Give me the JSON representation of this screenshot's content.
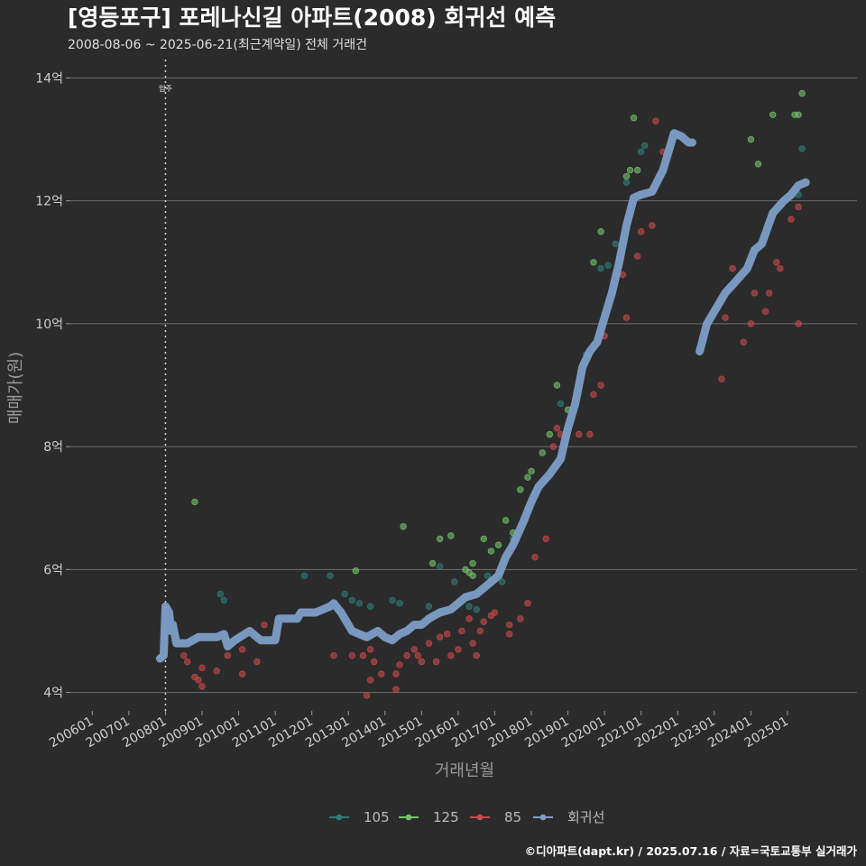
{
  "header": {
    "title": "[영등포구] 포레나신길 아파트(2008) 회귀선 예측",
    "subtitle": "2008-08-06 ~ 2025-06-21(최근계약일) 전체 거래건"
  },
  "caption": "©디아파트(dapt.kr) / 2025.07.16 / 자료=국토교통부 실거래가",
  "chart_data": {
    "type": "scatter",
    "title": "[영등포구] 포레나신길 아파트(2008) 회귀선 예측",
    "xlabel": "거래년월",
    "ylabel": "매매가(원)",
    "x_range": [
      2005.4,
      2026.9
    ],
    "ylim": [
      3.7,
      14.3
    ],
    "y_ticks": [
      4,
      6,
      8,
      10,
      12,
      14
    ],
    "y_tick_labels": [
      "4억",
      "6억",
      "8억",
      "10억",
      "12억",
      "14억"
    ],
    "x_ticks": [
      2006,
      2007,
      2008,
      2009,
      2010,
      2011,
      2012,
      2013,
      2014,
      2015,
      2016,
      2017,
      2018,
      2019,
      2020,
      2021,
      2022,
      2023,
      2024,
      2025
    ],
    "x_tick_labels": [
      "200601",
      "200701",
      "200801",
      "200901",
      "201001",
      "201101",
      "201201",
      "201301",
      "201401",
      "201501",
      "201601",
      "201701",
      "201801",
      "201901",
      "202001",
      "202101",
      "202201",
      "202301",
      "202401",
      "202501"
    ],
    "annotation": {
      "x": 2008.0,
      "label": "입주"
    },
    "grid": true,
    "legend_position": "bottom",
    "legend": [
      "105",
      "125",
      "85",
      "회귀선"
    ],
    "series": [
      {
        "name": "105",
        "color": "#2e7d78",
        "points": [
          [
            2009.5,
            5.6
          ],
          [
            2009.6,
            5.5
          ],
          [
            2011.8,
            5.9
          ],
          [
            2012.5,
            5.9
          ],
          [
            2012.9,
            5.6
          ],
          [
            2013.1,
            5.5
          ],
          [
            2013.3,
            5.45
          ],
          [
            2013.6,
            5.4
          ],
          [
            2014.2,
            5.5
          ],
          [
            2014.4,
            5.45
          ],
          [
            2015.2,
            5.4
          ],
          [
            2015.5,
            6.05
          ],
          [
            2015.9,
            5.8
          ],
          [
            2016.3,
            5.4
          ],
          [
            2016.5,
            5.35
          ],
          [
            2016.8,
            5.9
          ],
          [
            2017.2,
            5.8
          ],
          [
            2017.5,
            6.5
          ],
          [
            2017.9,
            7.0
          ],
          [
            2018.8,
            8.7
          ],
          [
            2019.5,
            9.5
          ],
          [
            2019.9,
            10.9
          ],
          [
            2020.1,
            10.95
          ],
          [
            2020.3,
            11.3
          ],
          [
            2020.6,
            12.3
          ],
          [
            2021.0,
            12.8
          ],
          [
            2021.1,
            12.9
          ],
          [
            2025.4,
            12.85
          ],
          [
            2025.3,
            12.1
          ]
        ]
      },
      {
        "name": "125",
        "color": "#73c26a",
        "points": [
          [
            2008.8,
            7.1
          ],
          [
            2013.2,
            5.98
          ],
          [
            2014.5,
            6.7
          ],
          [
            2015.3,
            6.1
          ],
          [
            2015.5,
            6.5
          ],
          [
            2015.8,
            6.55
          ],
          [
            2016.2,
            6.0
          ],
          [
            2016.3,
            5.95
          ],
          [
            2016.4,
            5.9
          ],
          [
            2016.4,
            6.1
          ],
          [
            2016.7,
            6.5
          ],
          [
            2016.9,
            6.3
          ],
          [
            2017.1,
            6.4
          ],
          [
            2017.3,
            6.8
          ],
          [
            2017.5,
            6.6
          ],
          [
            2017.7,
            7.3
          ],
          [
            2017.9,
            7.5
          ],
          [
            2018.0,
            7.6
          ],
          [
            2018.3,
            7.9
          ],
          [
            2018.5,
            8.2
          ],
          [
            2018.7,
            9.0
          ],
          [
            2019.0,
            8.6
          ],
          [
            2019.7,
            11.0
          ],
          [
            2019.9,
            11.5
          ],
          [
            2020.6,
            12.4
          ],
          [
            2020.7,
            12.5
          ],
          [
            2020.8,
            13.35
          ],
          [
            2020.9,
            12.5
          ],
          [
            2024.0,
            13.0
          ],
          [
            2024.2,
            12.6
          ],
          [
            2024.6,
            13.4
          ],
          [
            2025.2,
            13.4
          ],
          [
            2025.3,
            13.4
          ],
          [
            2025.4,
            13.75
          ]
        ]
      },
      {
        "name": "85",
        "color": "#c9494a",
        "points": [
          [
            2008.5,
            4.6
          ],
          [
            2008.6,
            4.5
          ],
          [
            2008.8,
            4.25
          ],
          [
            2008.9,
            4.2
          ],
          [
            2009.0,
            4.4
          ],
          [
            2009.0,
            4.1
          ],
          [
            2009.4,
            4.35
          ],
          [
            2009.7,
            4.6
          ],
          [
            2010.1,
            4.7
          ],
          [
            2010.1,
            4.3
          ],
          [
            2010.5,
            4.5
          ],
          [
            2010.7,
            5.1
          ],
          [
            2012.6,
            4.6
          ],
          [
            2013.1,
            4.6
          ],
          [
            2013.4,
            4.6
          ],
          [
            2013.6,
            4.7
          ],
          [
            2013.7,
            4.5
          ],
          [
            2013.5,
            3.95
          ],
          [
            2013.6,
            4.2
          ],
          [
            2013.9,
            4.3
          ],
          [
            2014.3,
            4.3
          ],
          [
            2014.3,
            4.05
          ],
          [
            2014.4,
            4.45
          ],
          [
            2014.6,
            4.6
          ],
          [
            2014.8,
            4.7
          ],
          [
            2014.9,
            4.6
          ],
          [
            2015.0,
            4.5
          ],
          [
            2015.2,
            4.8
          ],
          [
            2015.4,
            4.5
          ],
          [
            2015.5,
            4.9
          ],
          [
            2015.7,
            4.95
          ],
          [
            2015.8,
            4.6
          ],
          [
            2016.0,
            4.7
          ],
          [
            2016.1,
            5.0
          ],
          [
            2016.3,
            5.2
          ],
          [
            2016.4,
            4.8
          ],
          [
            2016.5,
            4.6
          ],
          [
            2016.6,
            5.0
          ],
          [
            2016.7,
            5.15
          ],
          [
            2016.9,
            5.25
          ],
          [
            2017.0,
            5.3
          ],
          [
            2017.4,
            5.1
          ],
          [
            2017.4,
            4.95
          ],
          [
            2017.7,
            5.2
          ],
          [
            2017.9,
            5.45
          ],
          [
            2018.1,
            6.2
          ],
          [
            2018.4,
            6.5
          ],
          [
            2018.6,
            8.0
          ],
          [
            2018.7,
            8.3
          ],
          [
            2018.8,
            8.2
          ],
          [
            2019.3,
            8.2
          ],
          [
            2019.6,
            8.2
          ],
          [
            2019.7,
            8.85
          ],
          [
            2019.9,
            9.0
          ],
          [
            2020.0,
            9.8
          ],
          [
            2020.5,
            10.8
          ],
          [
            2020.6,
            10.1
          ],
          [
            2020.9,
            11.1
          ],
          [
            2021.0,
            11.5
          ],
          [
            2021.3,
            11.6
          ],
          [
            2021.4,
            13.3
          ],
          [
            2021.6,
            12.8
          ],
          [
            2023.2,
            9.1
          ],
          [
            2023.3,
            10.1
          ],
          [
            2023.5,
            10.9
          ],
          [
            2023.8,
            9.7
          ],
          [
            2024.0,
            10.0
          ],
          [
            2024.1,
            10.5
          ],
          [
            2024.4,
            10.2
          ],
          [
            2024.5,
            10.5
          ],
          [
            2024.7,
            11.0
          ],
          [
            2024.8,
            10.9
          ],
          [
            2025.1,
            11.7
          ],
          [
            2025.3,
            11.9
          ],
          [
            2025.3,
            10.0
          ]
        ]
      }
    ],
    "regression": {
      "name": "회귀선",
      "color": "#7d9ec7",
      "segments": [
        [
          [
            2007.85,
            4.55
          ],
          [
            2007.95,
            4.6
          ],
          [
            2008.0,
            5.4
          ],
          [
            2008.1,
            5.3
          ],
          [
            2008.15,
            5.0
          ],
          [
            2008.2,
            5.1
          ],
          [
            2008.3,
            4.8
          ],
          [
            2008.6,
            4.8
          ],
          [
            2008.9,
            4.9
          ],
          [
            2009.4,
            4.9
          ],
          [
            2009.6,
            4.95
          ],
          [
            2009.7,
            4.75
          ],
          [
            2009.9,
            4.85
          ],
          [
            2010.3,
            5.0
          ],
          [
            2010.6,
            4.85
          ],
          [
            2011.0,
            4.85
          ],
          [
            2011.1,
            5.2
          ],
          [
            2011.6,
            5.2
          ],
          [
            2011.7,
            5.3
          ],
          [
            2011.9,
            5.3
          ],
          [
            2012.1,
            5.3
          ],
          [
            2012.3,
            5.35
          ],
          [
            2012.5,
            5.4
          ],
          [
            2012.6,
            5.45
          ],
          [
            2012.8,
            5.3
          ],
          [
            2012.9,
            5.2
          ],
          [
            2013.1,
            5.0
          ],
          [
            2013.5,
            4.9
          ],
          [
            2013.8,
            5.0
          ],
          [
            2014.0,
            4.9
          ],
          [
            2014.2,
            4.85
          ],
          [
            2014.4,
            4.95
          ],
          [
            2014.6,
            5.0
          ],
          [
            2014.8,
            5.1
          ],
          [
            2015.0,
            5.1
          ],
          [
            2015.2,
            5.2
          ],
          [
            2015.5,
            5.3
          ],
          [
            2015.8,
            5.35
          ],
          [
            2016.0,
            5.45
          ],
          [
            2016.2,
            5.55
          ],
          [
            2016.5,
            5.6
          ],
          [
            2016.8,
            5.75
          ],
          [
            2017.1,
            5.9
          ],
          [
            2017.3,
            6.2
          ],
          [
            2017.5,
            6.4
          ],
          [
            2017.8,
            6.8
          ],
          [
            2018.0,
            7.1
          ],
          [
            2018.2,
            7.35
          ],
          [
            2018.5,
            7.55
          ],
          [
            2018.8,
            7.8
          ],
          [
            2019.0,
            8.3
          ],
          [
            2019.2,
            8.7
          ],
          [
            2019.4,
            9.3
          ],
          [
            2019.6,
            9.55
          ],
          [
            2019.8,
            9.7
          ],
          [
            2020.0,
            10.1
          ],
          [
            2020.2,
            10.5
          ],
          [
            2020.4,
            11.0
          ],
          [
            2020.6,
            11.6
          ],
          [
            2020.8,
            12.05
          ],
          [
            2021.0,
            12.1
          ],
          [
            2021.3,
            12.15
          ],
          [
            2021.6,
            12.5
          ],
          [
            2021.9,
            13.1
          ],
          [
            2022.1,
            13.05
          ],
          [
            2022.3,
            12.95
          ],
          [
            2022.4,
            12.95
          ]
        ],
        [
          [
            2022.6,
            9.55
          ],
          [
            2022.8,
            10.0
          ],
          [
            2023.0,
            10.2
          ],
          [
            2023.3,
            10.5
          ],
          [
            2023.6,
            10.7
          ],
          [
            2023.9,
            10.9
          ],
          [
            2024.1,
            11.2
          ],
          [
            2024.3,
            11.3
          ],
          [
            2024.6,
            11.8
          ],
          [
            2024.9,
            12.0
          ],
          [
            2025.1,
            12.1
          ],
          [
            2025.3,
            12.25
          ],
          [
            2025.5,
            12.3
          ]
        ]
      ]
    }
  }
}
